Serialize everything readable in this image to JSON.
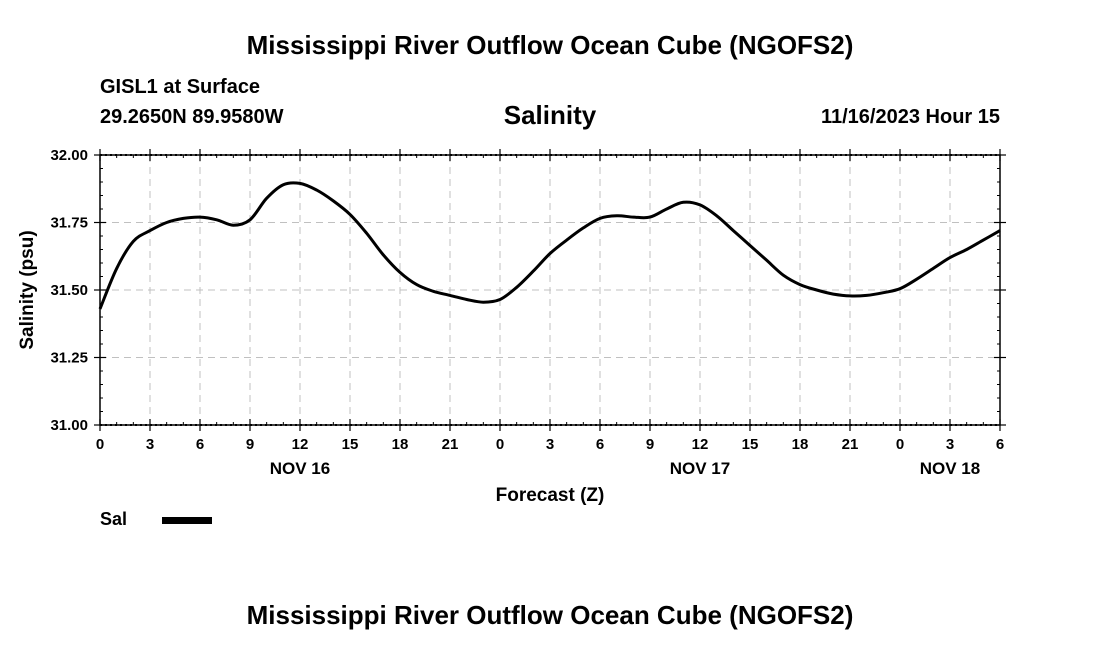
{
  "header": {
    "title": "Mississippi River Outflow Ocean Cube (NGOFS2)",
    "station": "GISL1 at Surface",
    "coordinates": "29.2650N  89.9580W",
    "variable": "Salinity",
    "forecast_time": "11/16/2023 Hour 15"
  },
  "legend": {
    "label": "Sal",
    "color": "#000000"
  },
  "footer": {
    "title": "Mississippi River Outflow Ocean Cube (NGOFS2)"
  },
  "chart_data": {
    "type": "line",
    "xlabel": "Forecast (Z)",
    "ylabel": "Salinity (psu)",
    "xlim": [
      0,
      54
    ],
    "ylim": [
      31.0,
      32.0
    ],
    "yticks": [
      31.0,
      31.25,
      31.5,
      31.75,
      32.0
    ],
    "ytick_labels": [
      "31.00",
      "31.25",
      "31.50",
      "31.75",
      "32.00"
    ],
    "xtick_labels": [
      "0",
      "3",
      "6",
      "9",
      "12",
      "15",
      "18",
      "21",
      "0",
      "3",
      "6",
      "9",
      "12",
      "15",
      "18",
      "21",
      "0",
      "3",
      "6"
    ],
    "date_labels": [
      {
        "label": "NOV 16",
        "at_tick": 4
      },
      {
        "label": "NOV 17",
        "at_tick": 12
      },
      {
        "label": "NOV 18",
        "at_tick": 17
      }
    ],
    "grid": true,
    "series": [
      {
        "name": "Sal",
        "color": "#000000",
        "x": [
          0,
          1,
          2,
          3,
          4,
          5,
          6,
          7,
          8,
          9,
          10,
          11,
          12,
          13,
          14,
          15,
          16,
          17,
          18,
          19,
          20,
          21,
          22,
          23,
          24,
          25,
          26,
          27,
          28,
          29,
          30,
          31,
          32,
          33,
          34,
          35,
          36,
          37,
          38,
          39,
          40,
          41,
          42,
          43,
          44,
          45,
          46,
          47,
          48,
          49,
          50,
          51,
          52,
          53,
          54
        ],
        "y": [
          31.43,
          31.58,
          31.68,
          31.72,
          31.75,
          31.765,
          31.77,
          31.76,
          31.74,
          31.76,
          31.84,
          31.89,
          31.895,
          31.87,
          31.83,
          31.78,
          31.71,
          31.63,
          31.565,
          31.52,
          31.495,
          31.48,
          31.465,
          31.455,
          31.465,
          31.51,
          31.57,
          31.635,
          31.685,
          31.73,
          31.765,
          31.775,
          31.77,
          31.77,
          31.8,
          31.825,
          31.815,
          31.775,
          31.72,
          31.665,
          31.61,
          31.555,
          31.52,
          31.5,
          31.485,
          31.478,
          31.48,
          31.49,
          31.505,
          31.54,
          31.58,
          31.62,
          31.65,
          31.685,
          31.72
        ]
      }
    ]
  }
}
